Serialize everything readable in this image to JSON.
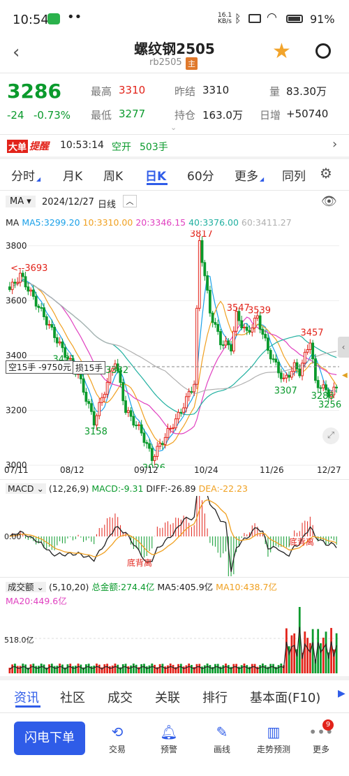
{
  "status": {
    "time": "10:54",
    "net_speed_top": "16.1",
    "net_speed_unit": "KB/s",
    "battery": "91%"
  },
  "header": {
    "title": "螺纹钢2505",
    "code": "rb2505",
    "badge": "主"
  },
  "quote": {
    "price": "3286",
    "change": "-24",
    "change_pct": "-0.73%",
    "high_label": "最高",
    "high": "3310",
    "low_label": "最低",
    "low": "3277",
    "prev_label": "昨结",
    "prev": "3310",
    "oi_label": "持仓",
    "oi": "163.0万",
    "vol_label": "量",
    "vol": "83.30万",
    "daily_label": "日增",
    "daily": "+50740"
  },
  "alert": {
    "badge1": "大单",
    "badge2": "提醒",
    "time": "10:53:14",
    "action": "空开",
    "amount": "503手"
  },
  "tabs": [
    "分时",
    "月K",
    "周K",
    "日K",
    "60分",
    "更多",
    "同列"
  ],
  "chart_header": {
    "indicator": "MA",
    "date": "2024/12/27",
    "period": "日线"
  },
  "ma_legend": {
    "label": "MA",
    "ma5": "MA5:3299.20",
    "ma10": "10:3310.00",
    "ma20": "20:3346.15",
    "ma40": "40:3376.00",
    "ma60": "60:3411.27"
  },
  "colors": {
    "up": "#e2231a",
    "down": "#0a9a2c",
    "ma5": "#1aa0e8",
    "ma10": "#f0a020",
    "ma20": "#e040c0",
    "ma40": "#20b0a0",
    "ma60": "#b0b0b0",
    "accent": "#2f5ce8"
  },
  "order_line": {
    "label": "空15手 -9750元",
    "short_label": "损15手"
  },
  "main_yaxis": [
    "3800",
    "3600",
    "3400",
    "3200",
    "3000"
  ],
  "xaxis": [
    "07/11",
    "08/12",
    "09/12",
    "10/24",
    "11/26",
    "12/27"
  ],
  "annotations": [
    {
      "text": "3693",
      "color": "red",
      "prefix": "<--"
    },
    {
      "text": "3421",
      "color": "green"
    },
    {
      "text": "3382",
      "color": "green"
    },
    {
      "text": "3158",
      "color": "green"
    },
    {
      "text": "3026",
      "color": "green"
    },
    {
      "text": "3817",
      "color": "red"
    },
    {
      "text": "3547",
      "color": "red"
    },
    {
      "text": "3539",
      "color": "red"
    },
    {
      "text": "3307",
      "color": "green"
    },
    {
      "text": "3457",
      "color": "red"
    },
    {
      "text": "3288",
      "color": "green"
    },
    {
      "text": "3256",
      "color": "green"
    }
  ],
  "macd": {
    "label": "MACD",
    "params": "(12,26,9)",
    "macd": "MACD:-9.31",
    "diff": "DIFF:-26.89",
    "dea": "DEA:-22.23",
    "zero": "0.00",
    "div1": "底背离",
    "div2": "底背离"
  },
  "volume": {
    "label": "成交额",
    "params": "(5,10,20)",
    "total": "总金额:274.4亿",
    "ma5": "MA5:405.9亿",
    "ma10": "MA10:438.7亿",
    "ma20": "MA20:449.6亿",
    "level": "518.0亿"
  },
  "bottom_tabs": [
    "资讯",
    "社区",
    "成交",
    "关联",
    "排行",
    "基本面(F10)"
  ],
  "nav": {
    "trade_button": "闪电下单",
    "items": [
      "交易",
      "预警",
      "画线",
      "走势预测",
      "更多"
    ],
    "badge": "9"
  },
  "chart_data": {
    "type": "candlestick",
    "x_ticks": [
      "07/11",
      "08/12",
      "09/12",
      "10/24",
      "11/26",
      "12/27"
    ],
    "y_ticks": [
      3800,
      3600,
      3400,
      3200,
      3000
    ],
    "ylim": [
      2990,
      3830
    ],
    "marked_points": [
      {
        "label": "3693",
        "value": 3693
      },
      {
        "label": "3421",
        "value": 3421
      },
      {
        "label": "3382",
        "value": 3382
      },
      {
        "label": "3158",
        "value": 3158
      },
      {
        "label": "3026",
        "value": 3026
      },
      {
        "label": "3817",
        "value": 3817
      },
      {
        "label": "3547",
        "value": 3547
      },
      {
        "label": "3539",
        "value": 3539
      },
      {
        "label": "3307",
        "value": 3307
      },
      {
        "label": "3457",
        "value": 3457
      },
      {
        "label": "3288",
        "value": 3288
      },
      {
        "label": "3256",
        "value": 3256
      }
    ],
    "series": [
      {
        "name": "MA5",
        "last": 3299.2
      },
      {
        "name": "MA10",
        "last": 3310.0
      },
      {
        "name": "MA20",
        "last": 3346.15
      },
      {
        "name": "MA40",
        "last": 3376.0
      },
      {
        "name": "MA60",
        "last": 3411.27
      }
    ]
  }
}
